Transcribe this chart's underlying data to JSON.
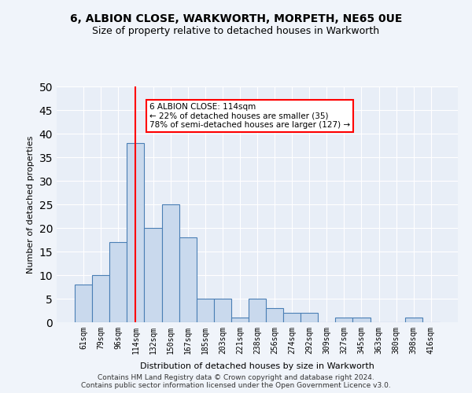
{
  "title1": "6, ALBION CLOSE, WARKWORTH, MORPETH, NE65 0UE",
  "title2": "Size of property relative to detached houses in Warkworth",
  "xlabel": "Distribution of detached houses by size in Warkworth",
  "ylabel": "Number of detached properties",
  "categories": [
    "61sqm",
    "79sqm",
    "96sqm",
    "114sqm",
    "132sqm",
    "150sqm",
    "167sqm",
    "185sqm",
    "203sqm",
    "221sqm",
    "238sqm",
    "256sqm",
    "274sqm",
    "292sqm",
    "309sqm",
    "327sqm",
    "345sqm",
    "363sqm",
    "380sqm",
    "398sqm",
    "416sqm"
  ],
  "values": [
    8,
    10,
    17,
    38,
    20,
    25,
    18,
    5,
    5,
    1,
    5,
    3,
    2,
    2,
    0,
    1,
    1,
    0,
    0,
    1,
    0
  ],
  "bar_color": "#c9d9ed",
  "bar_edge_color": "#4a7fb5",
  "vline_x": 3,
  "vline_color": "red",
  "annotation_text": "6 ALBION CLOSE: 114sqm\n← 22% of detached houses are smaller (35)\n78% of semi-detached houses are larger (127) →",
  "annotation_box_color": "white",
  "annotation_box_edge": "red",
  "ylim": [
    0,
    50
  ],
  "yticks": [
    0,
    5,
    10,
    15,
    20,
    25,
    30,
    35,
    40,
    45,
    50
  ],
  "footer": "Contains HM Land Registry data © Crown copyright and database right 2024.\nContains public sector information licensed under the Open Government Licence v3.0.",
  "bg_color": "#f0f4fa",
  "plot_bg_color": "#e8eef7"
}
